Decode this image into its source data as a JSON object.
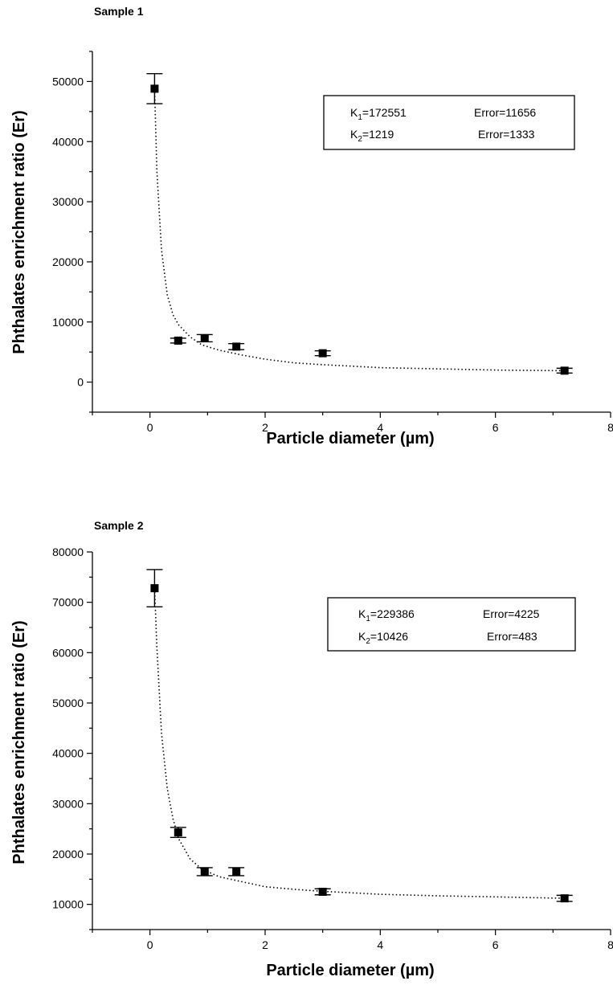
{
  "colors": {
    "ink": "#000000",
    "background": "#ffffff"
  },
  "chart_data": [
    {
      "type": "scatter",
      "title": "Sample 1",
      "xlabel": "Particle diameter (µm)",
      "ylabel": "Phthalates enrichment ratio (Er)",
      "xlim": [
        -1,
        8
      ],
      "ylim": [
        -5000,
        55000
      ],
      "x_ticks": [
        0,
        2,
        4,
        6,
        8
      ],
      "y_ticks": [
        0,
        10000,
        20000,
        30000,
        40000,
        50000
      ],
      "grid": false,
      "legend": "none",
      "series": [
        {
          "points": [
            {
              "x": 0.08,
              "y": 48800,
              "err": 2500
            },
            {
              "x": 0.49,
              "y": 6900,
              "err": 400
            },
            {
              "x": 0.95,
              "y": 7300,
              "err": 600
            },
            {
              "x": 1.5,
              "y": 5900,
              "err": 500
            },
            {
              "x": 3.0,
              "y": 4800,
              "err": 400
            },
            {
              "x": 7.2,
              "y": 1900,
              "err": 400
            }
          ],
          "fit_curve": [
            [
              0.08,
              48800
            ],
            [
              0.12,
              35000
            ],
            [
              0.2,
              22000
            ],
            [
              0.3,
              14500
            ],
            [
              0.4,
              11200
            ],
            [
              0.5,
              9500
            ],
            [
              0.7,
              7500
            ],
            [
              0.9,
              6200
            ],
            [
              1.2,
              5300
            ],
            [
              1.6,
              4500
            ],
            [
              2.0,
              3800
            ],
            [
              2.5,
              3200
            ],
            [
              3.0,
              2900
            ],
            [
              4.0,
              2400
            ],
            [
              5.0,
              2200
            ],
            [
              6.0,
              2000
            ],
            [
              7.2,
              1900
            ]
          ]
        }
      ],
      "fit_box": {
        "k1": "172551",
        "k1_error": "11656",
        "k2": "1219",
        "k2_error": "1333"
      }
    },
    {
      "type": "scatter",
      "title": "Sample 2",
      "xlabel": "Particle diameter (µm)",
      "ylabel": "Phthalates enrichment ratio (Er)",
      "xlim": [
        -1,
        8
      ],
      "ylim": [
        5000,
        80000
      ],
      "x_ticks": [
        0,
        2,
        4,
        6,
        8
      ],
      "y_ticks": [
        10000,
        20000,
        30000,
        40000,
        50000,
        60000,
        70000,
        80000
      ],
      "grid": false,
      "legend": "none",
      "series": [
        {
          "points": [
            {
              "x": 0.08,
              "y": 72800,
              "err": 3700
            },
            {
              "x": 0.49,
              "y": 24300,
              "err": 1000
            },
            {
              "x": 0.95,
              "y": 16500,
              "err": 800
            },
            {
              "x": 1.5,
              "y": 16500,
              "err": 800
            },
            {
              "x": 3.0,
              "y": 12500,
              "err": 600
            },
            {
              "x": 7.2,
              "y": 11200,
              "err": 600
            }
          ],
          "fit_curve": [
            [
              0.08,
              72800
            ],
            [
              0.12,
              61000
            ],
            [
              0.2,
              44000
            ],
            [
              0.3,
              33000
            ],
            [
              0.4,
              27000
            ],
            [
              0.5,
              23000
            ],
            [
              0.7,
              19000
            ],
            [
              0.9,
              17000
            ],
            [
              1.2,
              15500
            ],
            [
              1.6,
              14500
            ],
            [
              2.0,
              13500
            ],
            [
              2.5,
              13000
            ],
            [
              3.0,
              12600
            ],
            [
              4.0,
              12000
            ],
            [
              5.0,
              11700
            ],
            [
              6.0,
              11500
            ],
            [
              7.2,
              11200
            ]
          ]
        }
      ],
      "fit_box": {
        "k1": "229386",
        "k1_error": "4225",
        "k2": "10426",
        "k2_error": "483"
      }
    }
  ]
}
